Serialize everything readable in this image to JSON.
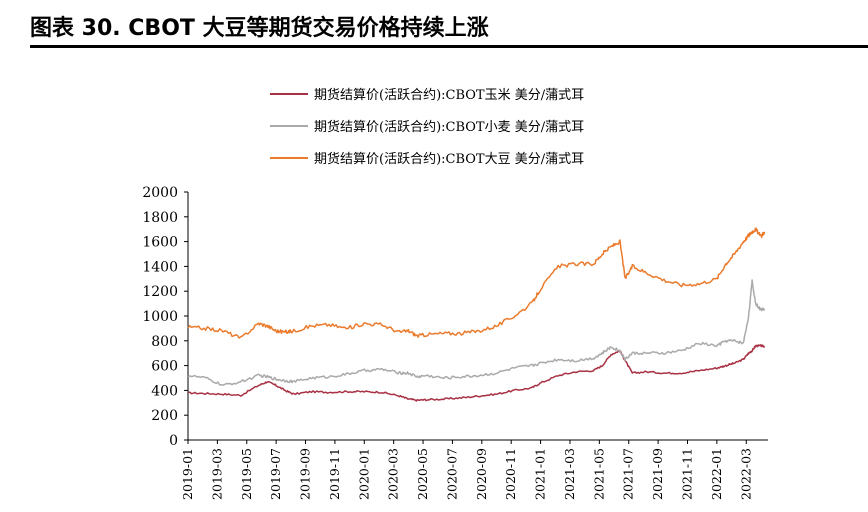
{
  "title": "图表 30. CBOT 大豆等期货交易价格持续上涨",
  "chart_data": {
    "type": "line",
    "title": "",
    "xlabel": "",
    "ylabel": "",
    "ylim": [
      0,
      2000
    ],
    "yticks": [
      0,
      200,
      400,
      600,
      800,
      1000,
      1200,
      1400,
      1600,
      1800,
      2000
    ],
    "xticks": [
      "2019-01",
      "2019-03",
      "2019-05",
      "2019-07",
      "2019-09",
      "2019-11",
      "2020-01",
      "2020-03",
      "2020-05",
      "2020-07",
      "2020-09",
      "2020-11",
      "2021-01",
      "2021-03",
      "2021-05",
      "2021-07",
      "2021-09",
      "2021-11",
      "2022-01",
      "2022-03"
    ],
    "x": [
      2019.0,
      2019.1,
      2019.2,
      2019.3,
      2019.4,
      2019.45,
      2019.5,
      2019.55,
      2019.6,
      2019.7,
      2019.8,
      2019.9,
      2020.0,
      2020.1,
      2020.2,
      2020.25,
      2020.3,
      2020.35,
      2020.45,
      2020.55,
      2020.65,
      2020.75,
      2020.85,
      2020.95,
      2021.0,
      2021.1,
      2021.2,
      2021.3,
      2021.35,
      2021.4,
      2021.45,
      2021.48,
      2021.52,
      2021.6,
      2021.7,
      2021.8,
      2021.9,
      2022.0,
      2022.05,
      2022.1,
      2022.15,
      2022.18,
      2022.2,
      2022.22,
      2022.25,
      2022.27
    ],
    "series": [
      {
        "name": "期货结算价(活跃合约):CBOT玉米 美分/蒲式耳",
        "color": "#a83244",
        "values": [
          380,
          375,
          370,
          360,
          440,
          470,
          440,
          400,
          370,
          390,
          385,
          390,
          390,
          385,
          355,
          330,
          320,
          325,
          330,
          340,
          355,
          370,
          400,
          420,
          460,
          520,
          550,
          560,
          600,
          690,
          720,
          640,
          540,
          550,
          540,
          540,
          560,
          580,
          600,
          620,
          650,
          700,
          720,
          760,
          760,
          755
        ]
      },
      {
        "name": "期货结算价(活跃合约):CBOT小麦 美分/蒲式耳",
        "color": "#aaaaaa",
        "values": [
          520,
          500,
          440,
          470,
          520,
          510,
          490,
          480,
          470,
          500,
          510,
          530,
          560,
          570,
          540,
          540,
          510,
          520,
          500,
          510,
          520,
          540,
          580,
          600,
          620,
          650,
          640,
          660,
          700,
          750,
          720,
          650,
          700,
          700,
          700,
          720,
          780,
          760,
          800,
          800,
          780,
          1000,
          1280,
          1100,
          1050,
          1060
        ]
      },
      {
        "name": "期货结算价(活跃合约):CBOT大豆 美分/蒲式耳",
        "color": "#ea7a2c",
        "values": [
          910,
          900,
          880,
          820,
          940,
          920,
          880,
          870,
          880,
          920,
          930,
          900,
          940,
          930,
          870,
          880,
          840,
          850,
          860,
          860,
          880,
          920,
          1000,
          1100,
          1220,
          1400,
          1420,
          1420,
          1500,
          1560,
          1600,
          1300,
          1400,
          1350,
          1290,
          1250,
          1260,
          1300,
          1420,
          1500,
          1600,
          1650,
          1680,
          1700,
          1640,
          1680
        ]
      }
    ],
    "legend_position": "top"
  }
}
